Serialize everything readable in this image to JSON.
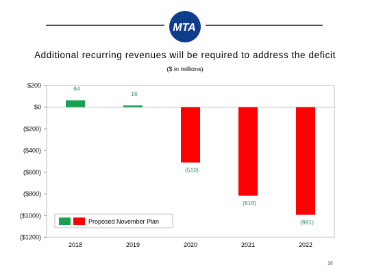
{
  "header": {
    "logo_text": "MTA",
    "logo_color": "#0e3d8c"
  },
  "title": "Additional recurring revenues will be required to address the deficit",
  "subtitle": "($ in millions)",
  "page_number": "16",
  "chart_data": {
    "type": "bar",
    "categories": [
      "2018",
      "2019",
      "2020",
      "2021",
      "2022"
    ],
    "values": [
      64,
      16,
      -510,
      -816,
      -991
    ],
    "data_labels": [
      "64",
      "16",
      "(510)",
      "(816)",
      "(991)"
    ],
    "label_color": "#2e8b57",
    "positive_color": "#1aa150",
    "negative_color": "#ff0000",
    "ylim": [
      -1200,
      200
    ],
    "yticks": [
      200,
      0,
      -200,
      -400,
      -600,
      -800,
      -1000,
      -1200
    ],
    "ytick_labels": [
      "$200",
      "$0",
      "($200)",
      "($400)",
      "($600)",
      "($800)",
      "($1000)",
      "($1200)"
    ],
    "legend": {
      "label": "Proposed November Plan",
      "swatch_colors": [
        "#1aa150",
        "#ff0000"
      ],
      "placement": "bottom-left"
    },
    "grid": false
  }
}
